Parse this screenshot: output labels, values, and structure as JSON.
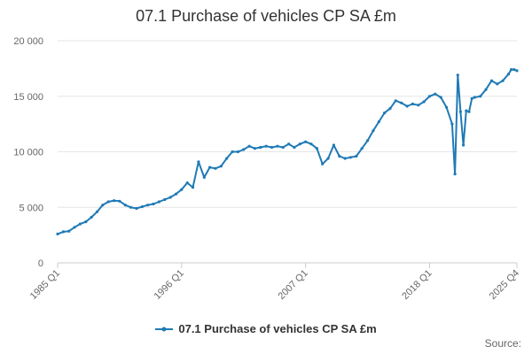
{
  "chart_data": {
    "type": "line",
    "title": "07.1 Purchase of vehicles CP SA £m",
    "xlabel": "",
    "ylabel": "",
    "ylim": [
      0,
      20000
    ],
    "yticks": [
      0,
      5000,
      10000,
      15000,
      20000
    ],
    "ytick_labels": [
      "0",
      "5 000",
      "10 000",
      "15 000",
      "20 000"
    ],
    "xtick_labels": [
      "1985 Q1",
      "1996 Q1",
      "2007 Q1",
      "2018 Q1",
      "2025 Q4"
    ],
    "grid": true,
    "legend_position": "bottom",
    "series": [
      {
        "name": "07.1 Purchase of vehicles CP SA £m",
        "color": "#1f7ab5",
        "points": [
          [
            "1985 Q1",
            2600
          ],
          [
            "1985 Q3",
            2800
          ],
          [
            "1986 Q1",
            2850
          ],
          [
            "1986 Q3",
            3200
          ],
          [
            "1987 Q1",
            3500
          ],
          [
            "1987 Q3",
            3700
          ],
          [
            "1988 Q1",
            4100
          ],
          [
            "1988 Q3",
            4600
          ],
          [
            "1989 Q1",
            5200
          ],
          [
            "1989 Q3",
            5500
          ],
          [
            "1990 Q1",
            5600
          ],
          [
            "1990 Q3",
            5550
          ],
          [
            "1991 Q1",
            5200
          ],
          [
            "1991 Q3",
            5000
          ],
          [
            "1992 Q1",
            4900
          ],
          [
            "1992 Q3",
            5050
          ],
          [
            "1993 Q1",
            5200
          ],
          [
            "1993 Q3",
            5300
          ],
          [
            "1994 Q1",
            5500
          ],
          [
            "1994 Q3",
            5700
          ],
          [
            "1995 Q1",
            5900
          ],
          [
            "1995 Q3",
            6200
          ],
          [
            "1996 Q1",
            6600
          ],
          [
            "1996 Q3",
            7200
          ],
          [
            "1997 Q1",
            6800
          ],
          [
            "1997 Q3",
            9100
          ],
          [
            "1998 Q1",
            7700
          ],
          [
            "1998 Q3",
            8600
          ],
          [
            "1999 Q1",
            8500
          ],
          [
            "1999 Q3",
            8700
          ],
          [
            "2000 Q1",
            9400
          ],
          [
            "2000 Q3",
            10000
          ],
          [
            "2001 Q1",
            10000
          ],
          [
            "2001 Q3",
            10200
          ],
          [
            "2002 Q1",
            10500
          ],
          [
            "2002 Q3",
            10300
          ],
          [
            "2003 Q1",
            10400
          ],
          [
            "2003 Q3",
            10500
          ],
          [
            "2004 Q1",
            10400
          ],
          [
            "2004 Q3",
            10500
          ],
          [
            "2005 Q1",
            10400
          ],
          [
            "2005 Q3",
            10700
          ],
          [
            "2006 Q1",
            10400
          ],
          [
            "2006 Q3",
            10700
          ],
          [
            "2007 Q1",
            10900
          ],
          [
            "2007 Q3",
            10700
          ],
          [
            "2008 Q1",
            10300
          ],
          [
            "2008 Q3",
            8900
          ],
          [
            "2009 Q1",
            9400
          ],
          [
            "2009 Q3",
            10600
          ],
          [
            "2010 Q1",
            9600
          ],
          [
            "2010 Q3",
            9400
          ],
          [
            "2011 Q1",
            9500
          ],
          [
            "2011 Q3",
            9600
          ],
          [
            "2012 Q1",
            10300
          ],
          [
            "2012 Q3",
            11000
          ],
          [
            "2013 Q1",
            11900
          ],
          [
            "2013 Q3",
            12700
          ],
          [
            "2014 Q1",
            13500
          ],
          [
            "2014 Q3",
            13900
          ],
          [
            "2015 Q1",
            14600
          ],
          [
            "2015 Q3",
            14400
          ],
          [
            "2016 Q1",
            14100
          ],
          [
            "2016 Q3",
            14300
          ],
          [
            "2017 Q1",
            14200
          ],
          [
            "2017 Q3",
            14500
          ],
          [
            "2018 Q1",
            15000
          ],
          [
            "2018 Q3",
            15200
          ],
          [
            "2019 Q1",
            14900
          ],
          [
            "2019 Q3",
            14000
          ],
          [
            "2020 Q1",
            12500
          ],
          [
            "2020 Q2",
            8000
          ],
          [
            "2020 Q3",
            16900
          ],
          [
            "2020 Q4",
            13600
          ],
          [
            "2021 Q1",
            10600
          ],
          [
            "2021 Q2",
            13700
          ],
          [
            "2021 Q3",
            13600
          ],
          [
            "2021 Q4",
            14800
          ],
          [
            "2022 Q1",
            14900
          ],
          [
            "2022 Q3",
            15000
          ],
          [
            "2023 Q1",
            15600
          ],
          [
            "2023 Q3",
            16400
          ],
          [
            "2024 Q1",
            16100
          ],
          [
            "2024 Q3",
            16400
          ],
          [
            "2025 Q1",
            17000
          ],
          [
            "2025 Q2",
            17400
          ],
          [
            "2025 Q3",
            17400
          ],
          [
            "2025 Q4",
            17300
          ]
        ]
      }
    ]
  },
  "legend": {
    "label": "07.1 Purchase of vehicles CP SA £m"
  },
  "footer": {
    "source_label": "Source:"
  }
}
